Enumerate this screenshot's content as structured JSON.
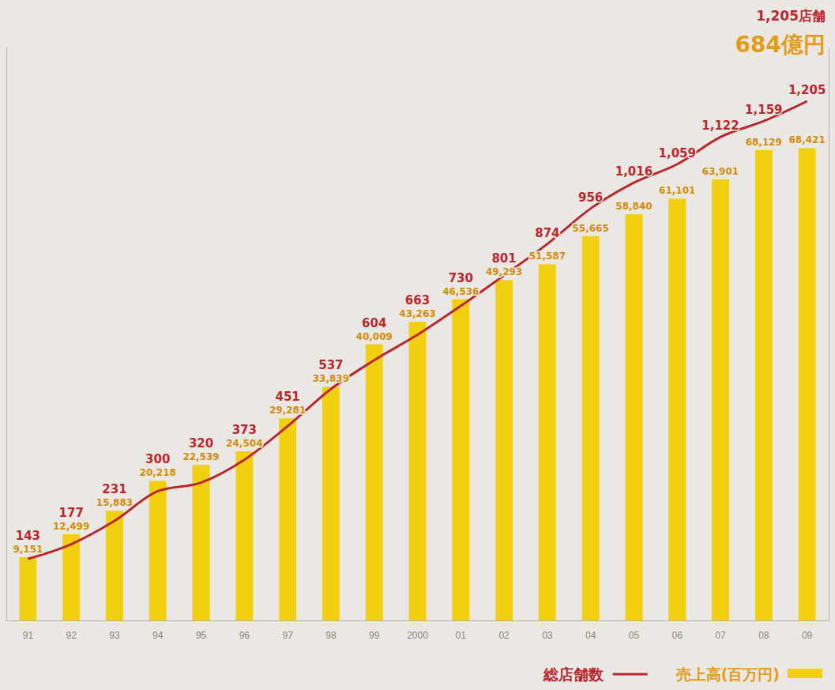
{
  "chart_data": {
    "type": "bar",
    "categories": [
      "91",
      "92",
      "93",
      "94",
      "95",
      "96",
      "97",
      "98",
      "99",
      "2000",
      "01",
      "02",
      "03",
      "04",
      "05",
      "06",
      "07",
      "08",
      "09"
    ],
    "series": [
      {
        "name": "総店舗数",
        "type": "line",
        "axis": "y2",
        "color": "#b8282e",
        "values": [
          143,
          177,
          231,
          300,
          320,
          373,
          451,
          537,
          604,
          663,
          730,
          801,
          874,
          956,
          1016,
          1059,
          1122,
          1159,
          1205
        ],
        "value_labels": [
          "143",
          "177",
          "231",
          "300",
          "320",
          "373",
          "451",
          "537",
          "604",
          "663",
          "730",
          "801",
          "874",
          "956",
          "1,016",
          "1,059",
          "1,122",
          "1,159",
          "1,205"
        ]
      },
      {
        "name": "売上高(百万円)",
        "type": "bar",
        "color": "#f3cf12",
        "values": [
          9151,
          12499,
          15883,
          20218,
          22539,
          24504,
          29281,
          33839,
          40009,
          43263,
          46536,
          49293,
          51587,
          55665,
          58840,
          61101,
          63901,
          68129,
          68421
        ],
        "value_labels": [
          "9,151",
          "12,499",
          "15,883",
          "20,218",
          "22,539",
          "24,504",
          "29,281",
          "33,839",
          "40,009",
          "43,263",
          "46,536",
          "49,293",
          "51,587",
          "55,665",
          "58,840",
          "61,101",
          "63,901",
          "68,129",
          "68,421"
        ]
      }
    ],
    "ylim": [
      0,
      83000
    ],
    "yticks": [],
    "y2lim": [
      0,
      1330
    ],
    "y2ticks": [],
    "tick_labels": "x",
    "data_labels": true,
    "legend": "bottom",
    "annotations": [
      "1,205店舗",
      "684億円"
    ]
  }
}
